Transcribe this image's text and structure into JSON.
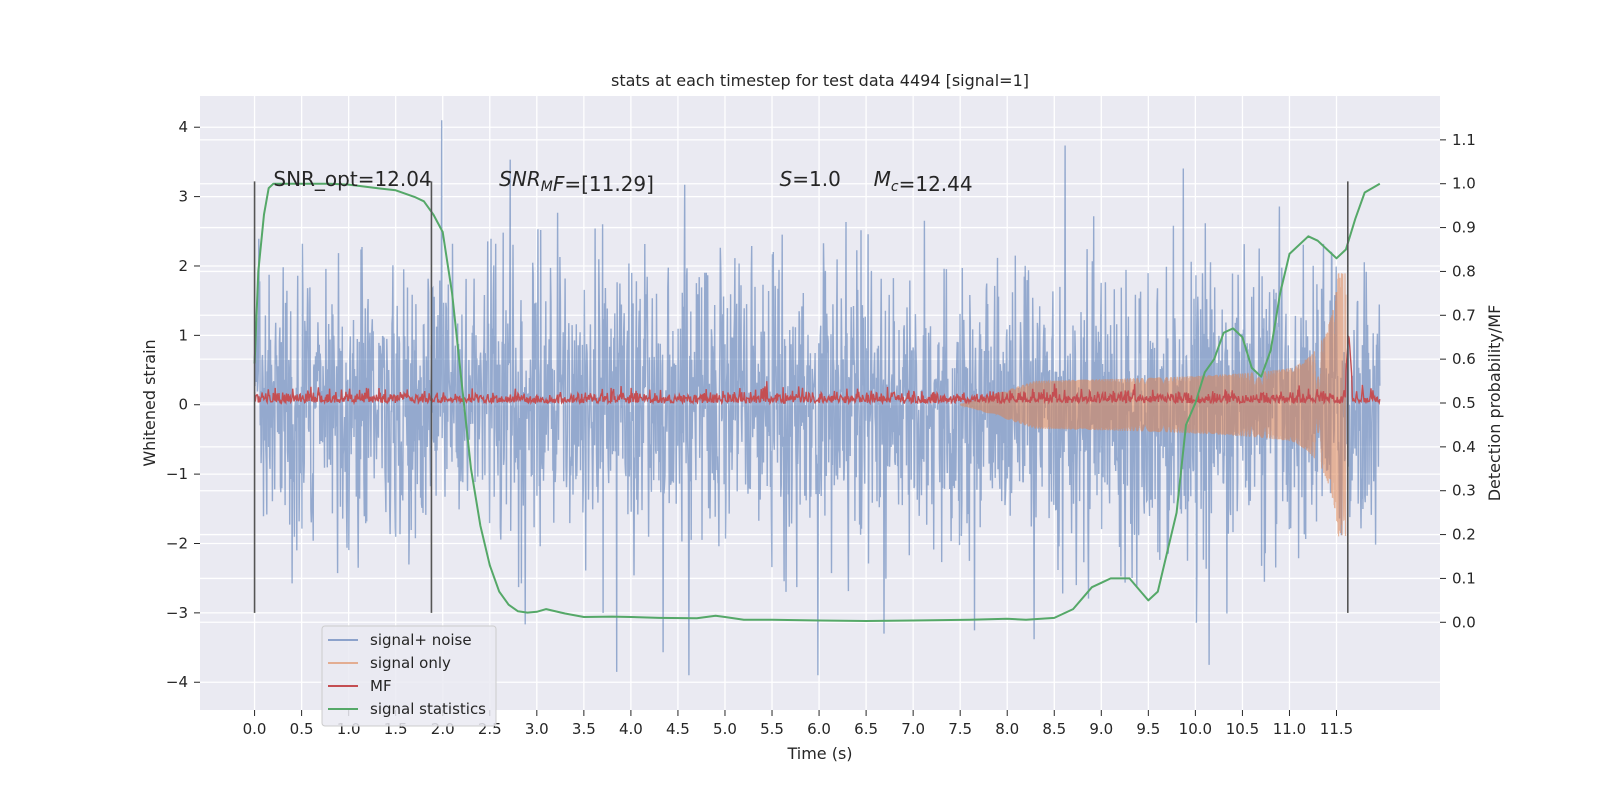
{
  "chart_data": {
    "type": "line",
    "title": "stats at each timestep for test data 4494 [signal=1]",
    "xlabel": "Time (s)",
    "ylabel_left": "Whitened strain",
    "ylabel_right": "Detection probability/MF",
    "xlim": [
      -0.58,
      12.6
    ],
    "ylim_left": [
      -4.4,
      4.45
    ],
    "ylim_right": [
      -0.2,
      1.2
    ],
    "x_ticks": [
      0.0,
      0.5,
      1.0,
      1.5,
      2.0,
      2.5,
      3.0,
      3.5,
      4.0,
      4.5,
      5.0,
      5.5,
      6.0,
      6.5,
      7.0,
      7.5,
      8.0,
      8.5,
      9.0,
      9.5,
      10.0,
      10.5,
      11.0,
      11.5
    ],
    "x_tick_labels": [
      "0.0",
      "0.5",
      "1.0",
      "1.5",
      "2.0",
      "2.5",
      "3.0",
      "3.5",
      "4.0",
      "4.5",
      "5.0",
      "5.5",
      "6.0",
      "6.5",
      "7.0",
      "7.5",
      "8.0",
      "8.5",
      "9.0",
      "9.5",
      "10.0",
      "10.5",
      "11.0",
      "11.5"
    ],
    "y_left_ticks": [
      -4,
      -3,
      -2,
      -1,
      0,
      1,
      2,
      3,
      4
    ],
    "y_left_tick_labels": [
      "−4",
      "−3",
      "−2",
      "−1",
      "0",
      "1",
      "2",
      "3",
      "4"
    ],
    "y_right_ticks": [
      0.0,
      0.1,
      0.2,
      0.3,
      0.4,
      0.5,
      0.6,
      0.7,
      0.8,
      0.9,
      1.0,
      1.1
    ],
    "y_right_tick_labels": [
      "0.0",
      "0.1",
      "0.2",
      "0.3",
      "0.4",
      "0.5",
      "0.6",
      "0.7",
      "0.8",
      "0.9",
      "1.0",
      "1.1"
    ],
    "grid": true,
    "legend_position": "lower-left",
    "series": [
      {
        "name": "signal+ noise",
        "color": "#4c72b0",
        "axis": "left",
        "x_range": [
          0.0,
          11.96
        ],
        "typical_range": [
          -2.0,
          2.0
        ],
        "extreme_range": [
          -3.9,
          4.1
        ]
      },
      {
        "name": "signal only",
        "color": "#dd8452",
        "axis": "left",
        "chirp_start_x": 7.5,
        "chirp_peak_x": 11.6,
        "chirp_peak_amplitude": 1.9
      },
      {
        "name": "MF",
        "color": "#c44e52",
        "axis": "right",
        "baseline": 0.5,
        "noise_range": [
          0.49,
          0.55
        ],
        "peak": {
          "x": 11.63,
          "y": 0.66
        }
      },
      {
        "name": "signal statistics",
        "color": "#55a868",
        "axis": "right",
        "x": [
          0.0,
          0.04,
          0.1,
          0.15,
          0.2,
          0.3,
          0.5,
          0.8,
          1.0,
          1.3,
          1.5,
          1.7,
          1.8,
          1.9,
          2.0,
          2.1,
          2.2,
          2.3,
          2.4,
          2.5,
          2.6,
          2.7,
          2.8,
          2.9,
          3.0,
          3.1,
          3.3,
          3.5,
          3.8,
          4.0,
          4.3,
          4.7,
          4.9,
          5.0,
          5.2,
          5.5,
          6.0,
          6.5,
          7.0,
          7.3,
          7.6,
          8.0,
          8.2,
          8.5,
          8.7,
          8.9,
          9.0,
          9.1,
          9.2,
          9.3,
          9.5,
          9.6,
          9.8,
          9.9,
          10.0,
          10.1,
          10.2,
          10.3,
          10.4,
          10.5,
          10.6,
          10.7,
          10.8,
          10.9,
          11.0,
          11.2,
          11.3,
          11.4,
          11.5,
          11.6,
          11.7,
          11.8,
          11.96
        ],
        "y": [
          0.59,
          0.8,
          0.93,
          0.99,
          1.0,
          1.0,
          1.0,
          1.0,
          0.998,
          0.99,
          0.985,
          0.97,
          0.96,
          0.93,
          0.89,
          0.75,
          0.55,
          0.35,
          0.22,
          0.13,
          0.07,
          0.04,
          0.025,
          0.022,
          0.024,
          0.03,
          0.02,
          0.012,
          0.013,
          0.012,
          0.01,
          0.009,
          0.015,
          0.012,
          0.006,
          0.006,
          0.004,
          0.003,
          0.004,
          0.005,
          0.006,
          0.008,
          0.006,
          0.01,
          0.03,
          0.08,
          0.09,
          0.1,
          0.1,
          0.1,
          0.05,
          0.07,
          0.25,
          0.45,
          0.5,
          0.57,
          0.6,
          0.66,
          0.67,
          0.65,
          0.58,
          0.56,
          0.62,
          0.75,
          0.84,
          0.88,
          0.87,
          0.85,
          0.83,
          0.85,
          0.92,
          0.98,
          1.0
        ]
      }
    ],
    "annotations": [
      {
        "text": "SNR_opt=12.04",
        "x": 0.2,
        "y": 3.15
      },
      {
        "text_parts": [
          {
            "t": "SNR",
            "i": true
          },
          {
            "t": "M",
            "i": true,
            "sub": true
          },
          {
            "t": "F",
            "i": true
          },
          {
            "t": "=[11.29]"
          }
        ],
        "x": 2.6,
        "y": 3.15
      },
      {
        "text_parts": [
          {
            "t": "S",
            "i": true
          },
          {
            "t": "=1.0"
          }
        ],
        "x": 5.58,
        "y": 3.15
      },
      {
        "text_parts": [
          {
            "t": "M",
            "i": true
          },
          {
            "t": "c",
            "i": true,
            "sub": true
          },
          {
            "t": "=12.44"
          }
        ],
        "x": 6.58,
        "y": 3.15
      }
    ],
    "vertical_markers_x": [
      0.0,
      1.88,
      11.62
    ]
  }
}
